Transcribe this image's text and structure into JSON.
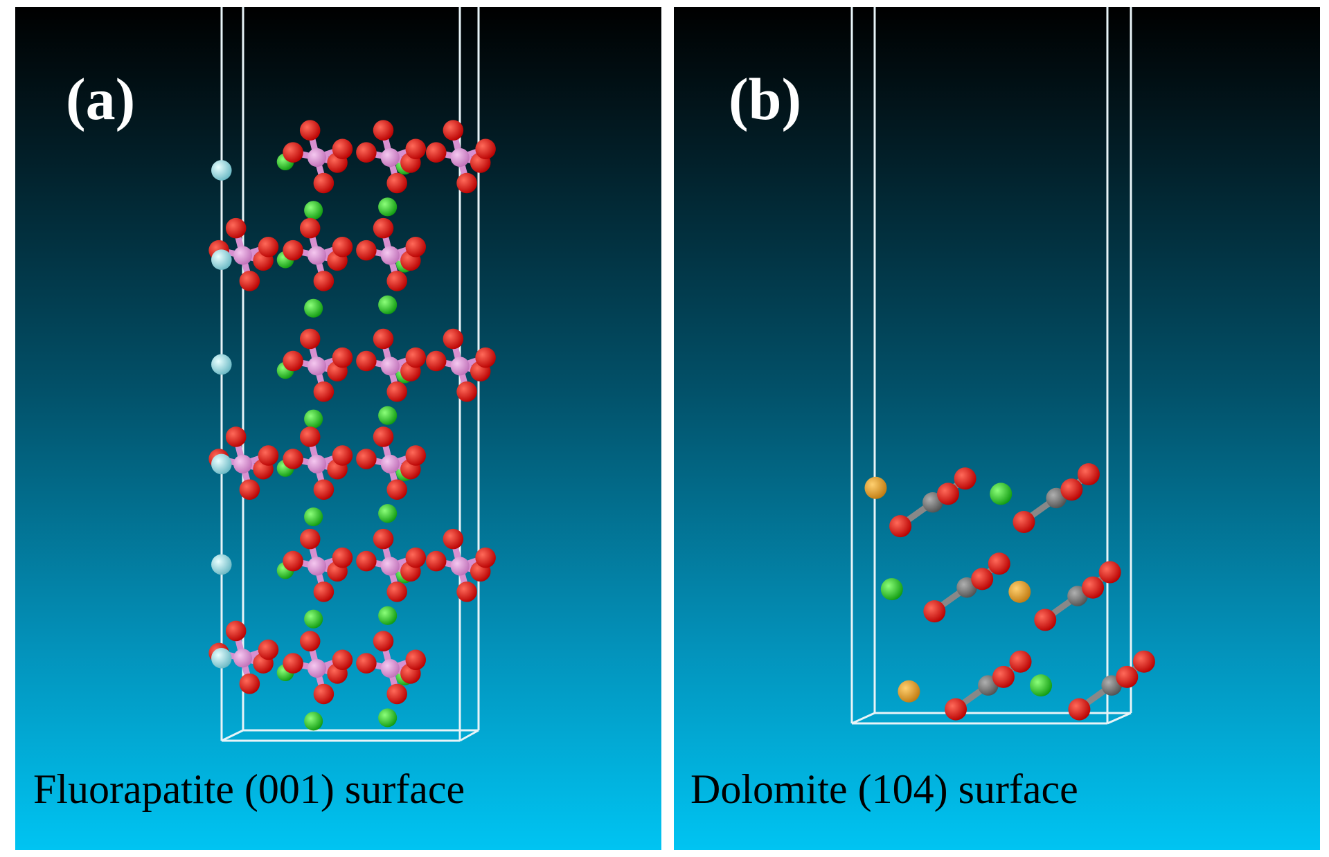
{
  "panels": [
    {
      "label": "(a)",
      "caption": "Fluorapatite (001) surface"
    },
    {
      "label": "(b)",
      "caption": "Dolomite (104) surface"
    }
  ]
}
